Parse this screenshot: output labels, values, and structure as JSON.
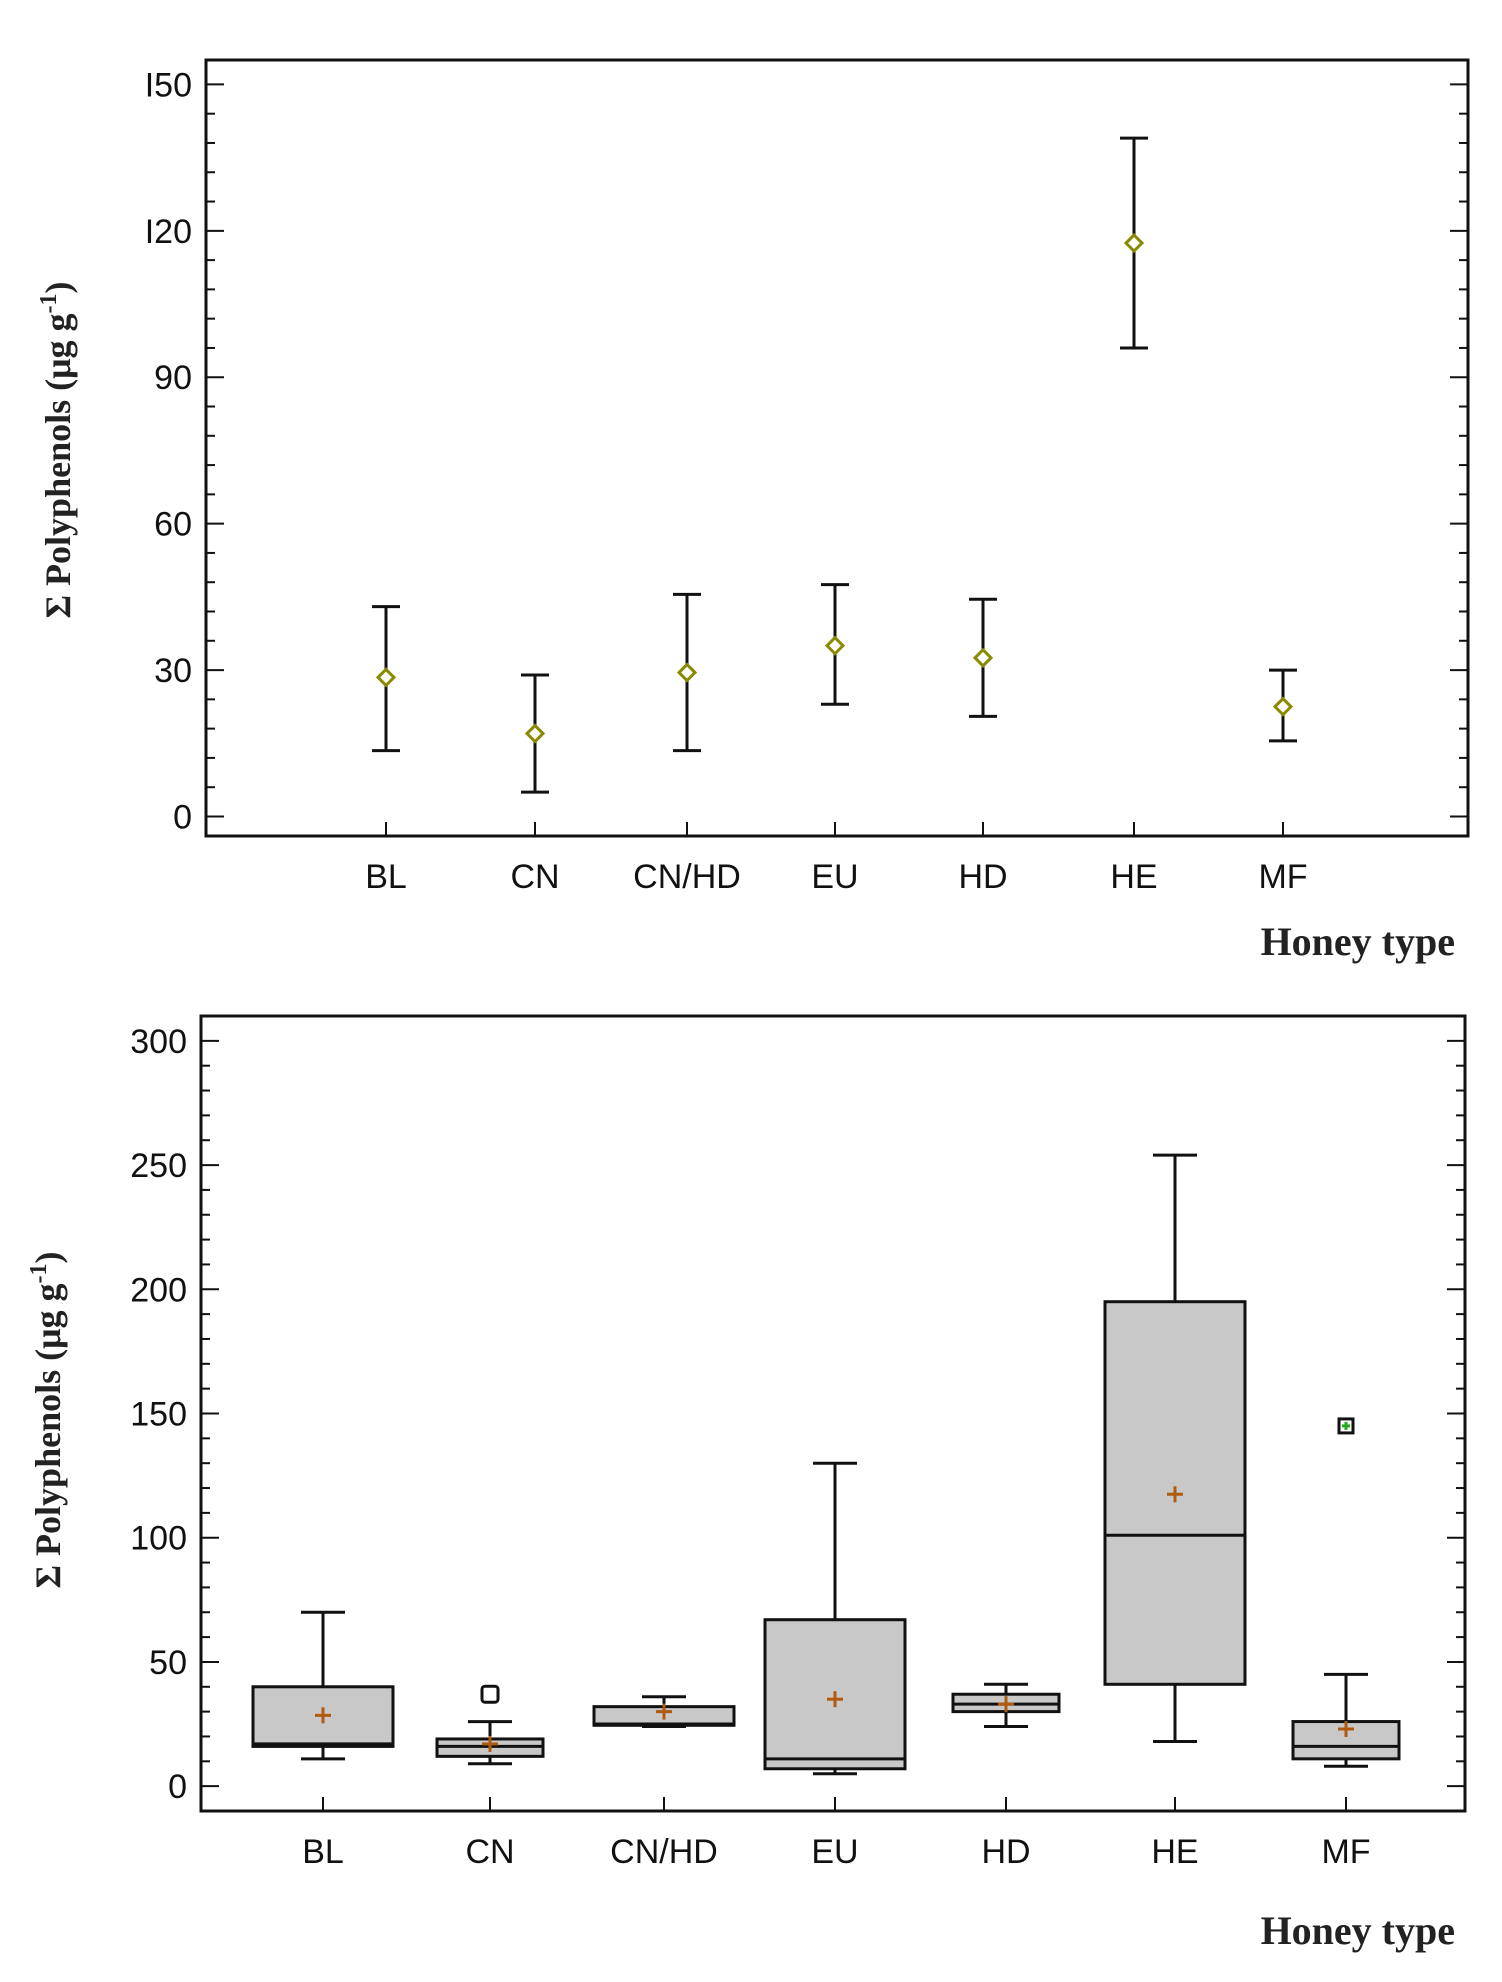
{
  "chart_data": [
    {
      "type": "scatter",
      "variant": "mean-with-error-bars",
      "categories": [
        "BL",
        "CN",
        "CN/HD",
        "EU",
        "HD",
        "HE",
        "MF"
      ],
      "means": [
        28.5,
        17,
        29.5,
        35,
        32.5,
        117.5,
        22.5
      ],
      "lower": [
        13.5,
        5,
        13.5,
        23,
        20.5,
        96,
        15.5
      ],
      "upper": [
        43,
        29,
        45.5,
        47.5,
        44.5,
        139,
        30
      ],
      "ylim": [
        -4,
        155
      ],
      "yticks": [
        0,
        30,
        60,
        90,
        120,
        150
      ],
      "ytick_labels": [
        "0",
        "30",
        "60",
        "90",
        "I20",
        "I50"
      ],
      "ylabel_main": "Σ Polyphenols (μg g",
      "ylabel_sup": "-1",
      "ylabel_close": ")",
      "xlabel": "Honey type",
      "marker_color": "#8a8a00"
    },
    {
      "type": "box",
      "categories": [
        "BL",
        "CN",
        "CN/HD",
        "EU",
        "HD",
        "HE",
        "MF"
      ],
      "boxes": [
        {
          "whisker_low": 11,
          "q1": 16,
          "median": 17,
          "q3": 40,
          "whisker_high": 70,
          "mean": 28.5,
          "outliers": []
        },
        {
          "whisker_low": 9,
          "q1": 12,
          "median": 16,
          "q3": 19,
          "whisker_high": 26,
          "mean": 17,
          "outliers": [
            37
          ]
        },
        {
          "whisker_low": 24,
          "q1": 24.5,
          "median": 25,
          "q3": 32,
          "whisker_high": 36,
          "mean": 30,
          "outliers": []
        },
        {
          "whisker_low": 5,
          "q1": 7,
          "median": 11,
          "q3": 67,
          "whisker_high": 130,
          "mean": 35,
          "outliers": []
        },
        {
          "whisker_low": 24,
          "q1": 30,
          "median": 33,
          "q3": 37,
          "whisker_high": 41,
          "mean": 33,
          "outliers": []
        },
        {
          "whisker_low": 18,
          "q1": 41,
          "median": 101,
          "q3": 195,
          "whisker_high": 254,
          "mean": 117.5,
          "outliers": []
        },
        {
          "whisker_low": 8,
          "q1": 11,
          "median": 16,
          "q3": 26,
          "whisker_high": 45,
          "mean": 23,
          "outliers": [
            145
          ]
        }
      ],
      "ylim": [
        -10,
        310
      ],
      "yticks": [
        0,
        50,
        100,
        150,
        200,
        250,
        300
      ],
      "ytick_labels": [
        "0",
        "50",
        "100",
        "150",
        "200",
        "250",
        "300"
      ],
      "ylabel_main": "Σ Polyphenols (μg g",
      "ylabel_sup": "-1",
      "ylabel_close": ")",
      "xlabel": "Honey type",
      "box_fill": "#c8c8c8",
      "mean_color": "#b05a10",
      "outlier_color": "#22aa22"
    }
  ]
}
